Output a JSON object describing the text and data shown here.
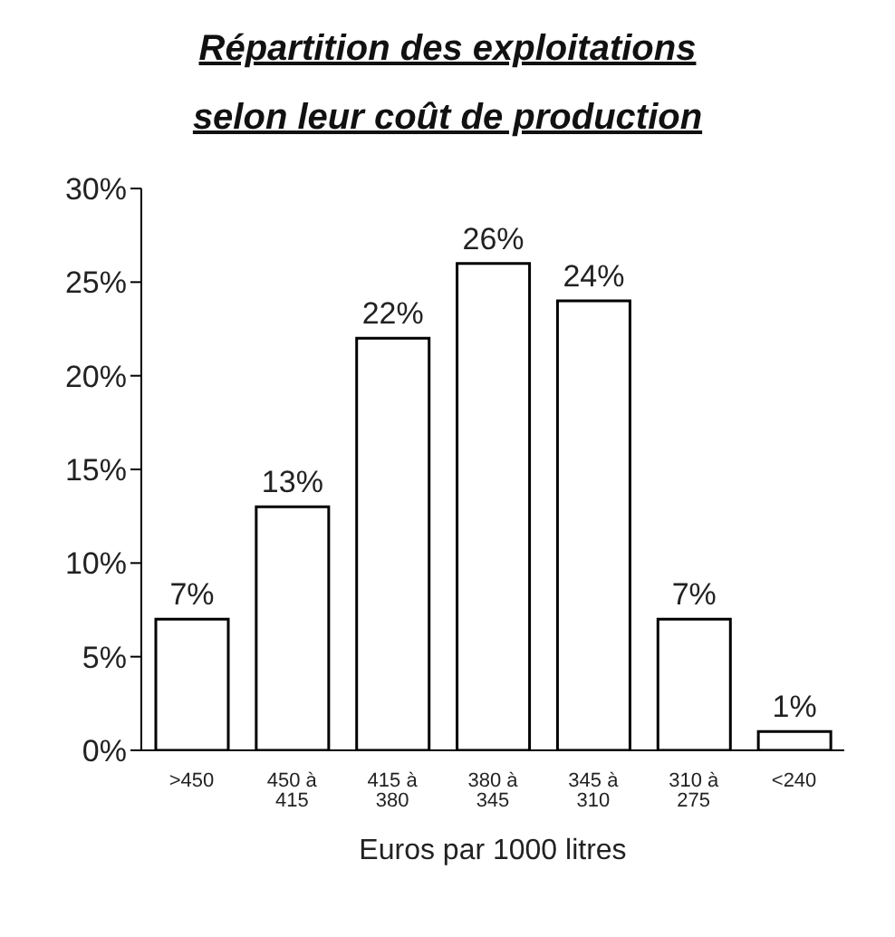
{
  "chart_data": {
    "type": "bar",
    "title": "Répartition des exploitations selon leur coût de production",
    "xlabel": "Euros par 1000 litres",
    "categories": [
      ">450",
      "450 à 415",
      "415 à 380",
      "380 à 345",
      "345 à 310",
      "310 à 275",
      "<240"
    ],
    "values": [
      7,
      13,
      22,
      26,
      24,
      7,
      1
    ],
    "value_labels": [
      "7%",
      "13%",
      "22%",
      "26%",
      "24%",
      "7%",
      "1%"
    ],
    "color": "#ffffff",
    "ylim": [
      0,
      30
    ],
    "yticks": [
      {
        "value": 0,
        "label": "0%"
      },
      {
        "value": 5,
        "label": "5%"
      },
      {
        "value": 10,
        "label": "10%"
      },
      {
        "value": 15,
        "label": "15%"
      },
      {
        "value": 20,
        "label": "20%"
      },
      {
        "value": 25,
        "label": "25%"
      },
      {
        "value": 30,
        "label": "30%"
      }
    ],
    "grid": false,
    "legend": false
  }
}
